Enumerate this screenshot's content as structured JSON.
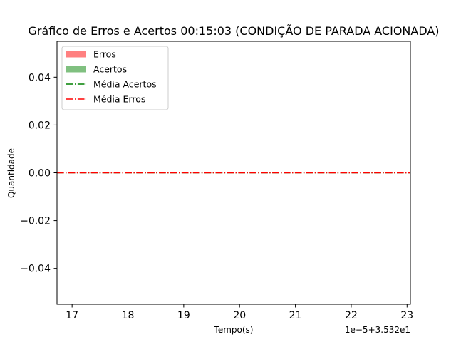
{
  "chart_data": {
    "type": "line",
    "title": "Gráfico de Erros e Acertos 00:15:03 (CONDIÇÃO DE PARADA ACIONADA)",
    "xlabel": "Tempo(s)",
    "ylabel": "Quantidade",
    "x_offset_text": "1e−5+3.532e1",
    "x_ticks": [
      17,
      18,
      19,
      20,
      21,
      22,
      23
    ],
    "x_tick_labels": [
      "17",
      "18",
      "19",
      "20",
      "21",
      "22",
      "23"
    ],
    "y_ticks": [
      -0.04,
      -0.02,
      0.0,
      0.02,
      0.04
    ],
    "y_tick_labels": [
      "−0.04",
      "−0.02",
      "0.00",
      "0.02",
      "0.04"
    ],
    "xlim": [
      16.73,
      23.06
    ],
    "ylim": [
      -0.055,
      0.055
    ],
    "grid": false,
    "legend_position": "top-left",
    "legend": [
      {
        "label": "Erros",
        "kind": "patch",
        "color": "#ff8080"
      },
      {
        "label": "Acertos",
        "kind": "patch",
        "color": "#80c080"
      },
      {
        "label": "Média Acertos",
        "kind": "line",
        "color": "#008000",
        "dash": "dashdot"
      },
      {
        "label": "Média Erros",
        "kind": "line",
        "color": "#ff0000",
        "dash": "dashdot"
      }
    ],
    "series": [
      {
        "name": "Média Acertos",
        "color": "#008000",
        "value": 0.0
      },
      {
        "name": "Média Erros",
        "color": "#ff0000",
        "value": 0.0
      }
    ]
  }
}
